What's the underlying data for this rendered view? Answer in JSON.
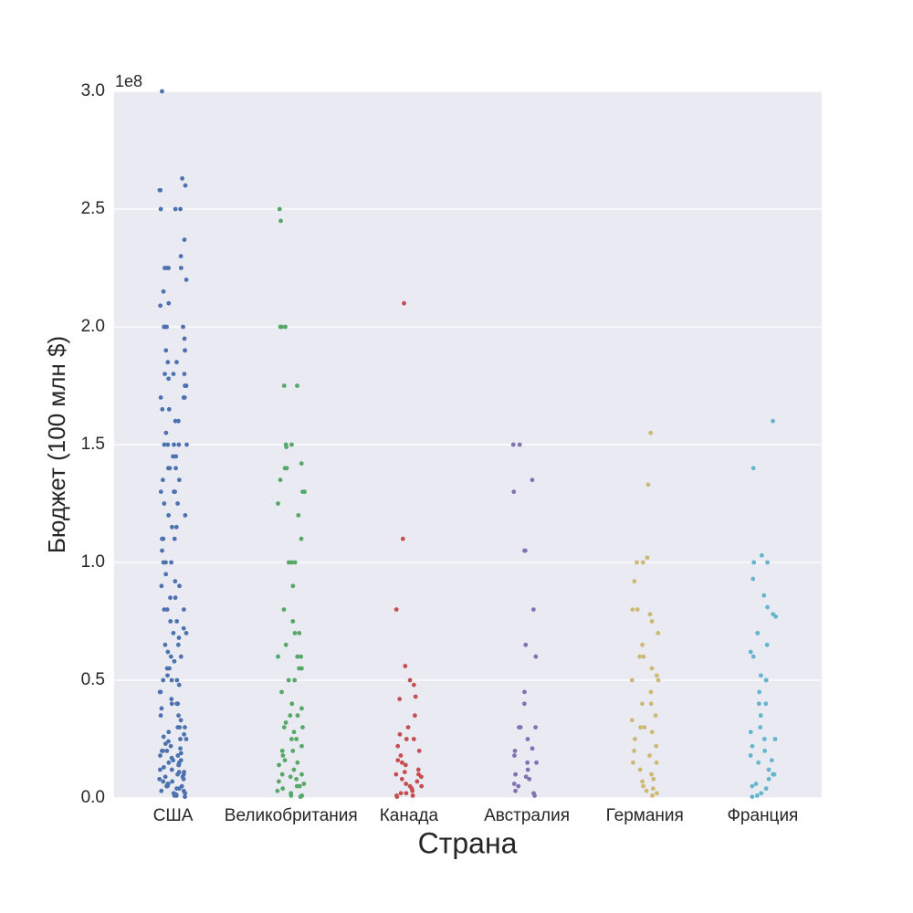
{
  "chart_data": {
    "type": "strip",
    "xlabel": "Страна",
    "ylabel": "Бюджет (100 млн $)",
    "y_offset_label": "1e8",
    "ylim": [
      0,
      3.0
    ],
    "yticks": [
      {
        "value": 0,
        "label": "0.0"
      },
      0.5,
      {
        "value": 1,
        "label": "1.0"
      },
      1.5,
      {
        "value": 2,
        "label": "2.0"
      },
      2.5,
      {
        "value": 3,
        "label": "3.0"
      }
    ],
    "grid": true,
    "series": [
      {
        "name": "США",
        "color": "#4c72b0",
        "values": [
          3.0,
          2.63,
          2.6,
          2.58,
          2.58,
          2.5,
          2.5,
          2.5,
          2.37,
          2.3,
          2.25,
          2.25,
          2.25,
          2.25,
          2.2,
          2.15,
          2.1,
          2.09,
          2.0,
          2.0,
          2.0,
          2.0,
          1.95,
          1.9,
          1.9,
          1.9,
          1.85,
          1.85,
          1.8,
          1.8,
          1.8,
          1.78,
          1.75,
          1.75,
          1.75,
          1.7,
          1.7,
          1.7,
          1.65,
          1.65,
          1.6,
          1.6,
          1.55,
          1.5,
          1.5,
          1.5,
          1.5,
          1.5,
          1.45,
          1.45,
          1.4,
          1.4,
          1.4,
          1.35,
          1.35,
          1.3,
          1.3,
          1.3,
          1.25,
          1.25,
          1.2,
          1.2,
          1.15,
          1.15,
          1.1,
          1.1,
          1.1,
          1.05,
          1.0,
          1.0,
          1.0,
          0.95,
          0.92,
          0.9,
          0.9,
          0.85,
          0.85,
          0.8,
          0.8,
          0.8,
          0.75,
          0.75,
          0.72,
          0.7,
          0.7,
          0.68,
          0.65,
          0.65,
          0.62,
          0.6,
          0.6,
          0.58,
          0.55,
          0.55,
          0.52,
          0.5,
          0.5,
          0.5,
          0.48,
          0.45,
          0.45,
          0.42,
          0.4,
          0.4,
          0.4,
          0.38,
          0.35,
          0.35,
          0.33,
          0.3,
          0.3,
          0.3,
          0.28,
          0.26,
          0.25,
          0.25,
          0.24,
          0.22,
          0.2,
          0.2,
          0.2,
          0.19,
          0.18,
          0.17,
          0.16,
          0.15,
          0.15,
          0.14,
          0.13,
          0.12,
          0.11,
          0.1,
          0.1,
          0.09,
          0.08,
          0.07,
          0.06,
          0.05,
          0.05,
          0.04,
          0.03,
          0.02,
          0.01,
          0.005,
          0.27,
          0.23,
          0.21,
          0.18,
          0.16,
          0.14,
          0.12,
          0.11,
          0.09,
          0.08,
          0.07,
          0.06,
          0.05,
          0.04,
          0.03,
          0.02,
          0.015,
          0.01
        ]
      },
      {
        "name": "Великобритания",
        "color": "#55a868",
        "values": [
          2.5,
          2.45,
          2.0,
          2.0,
          2.0,
          1.75,
          1.75,
          1.5,
          1.5,
          1.49,
          1.42,
          1.4,
          1.4,
          1.35,
          1.3,
          1.3,
          1.25,
          1.2,
          1.1,
          1.0,
          1.0,
          1.0,
          0.9,
          0.8,
          0.75,
          0.7,
          0.7,
          0.65,
          0.6,
          0.6,
          0.6,
          0.55,
          0.55,
          0.5,
          0.5,
          0.45,
          0.4,
          0.38,
          0.35,
          0.35,
          0.32,
          0.3,
          0.3,
          0.28,
          0.25,
          0.25,
          0.22,
          0.2,
          0.2,
          0.18,
          0.16,
          0.15,
          0.14,
          0.12,
          0.1,
          0.1,
          0.09,
          0.08,
          0.07,
          0.06,
          0.05,
          0.05,
          0.04,
          0.03,
          0.02,
          0.01,
          0.01,
          0.005
        ]
      },
      {
        "name": "Канада",
        "color": "#c44e52",
        "values": [
          2.1,
          1.1,
          0.8,
          0.56,
          0.5,
          0.48,
          0.43,
          0.42,
          0.35,
          0.3,
          0.27,
          0.25,
          0.25,
          0.22,
          0.2,
          0.18,
          0.16,
          0.15,
          0.14,
          0.12,
          0.11,
          0.1,
          0.1,
          0.09,
          0.08,
          0.07,
          0.06,
          0.05,
          0.05,
          0.04,
          0.03,
          0.02,
          0.02,
          0.01,
          0.01,
          0.005
        ]
      },
      {
        "name": "Австралия",
        "color": "#8172b2",
        "values": [
          1.5,
          1.5,
          1.35,
          1.3,
          1.05,
          1.05,
          0.8,
          0.65,
          0.6,
          0.45,
          0.4,
          0.3,
          0.3,
          0.3,
          0.25,
          0.21,
          0.2,
          0.18,
          0.15,
          0.15,
          0.12,
          0.1,
          0.09,
          0.08,
          0.06,
          0.05,
          0.03,
          0.02,
          0.01
        ]
      },
      {
        "name": "Германия",
        "color": "#ccb974",
        "values": [
          1.55,
          1.33,
          1.02,
          1.0,
          1.0,
          0.92,
          0.8,
          0.8,
          0.78,
          0.75,
          0.7,
          0.65,
          0.6,
          0.6,
          0.55,
          0.52,
          0.5,
          0.5,
          0.45,
          0.4,
          0.4,
          0.35,
          0.33,
          0.3,
          0.3,
          0.28,
          0.25,
          0.22,
          0.2,
          0.18,
          0.15,
          0.15,
          0.12,
          0.1,
          0.08,
          0.07,
          0.05,
          0.04,
          0.03,
          0.02,
          0.01
        ]
      },
      {
        "name": "Франция",
        "color": "#64b5cd",
        "values": [
          1.6,
          1.4,
          1.03,
          1.0,
          1.0,
          0.93,
          0.86,
          0.81,
          0.78,
          0.77,
          0.7,
          0.7,
          0.65,
          0.62,
          0.6,
          0.52,
          0.5,
          0.5,
          0.45,
          0.4,
          0.4,
          0.35,
          0.3,
          0.28,
          0.25,
          0.25,
          0.22,
          0.2,
          0.18,
          0.16,
          0.15,
          0.12,
          0.1,
          0.1,
          0.08,
          0.06,
          0.05,
          0.04,
          0.02,
          0.01,
          0.005
        ]
      }
    ]
  }
}
